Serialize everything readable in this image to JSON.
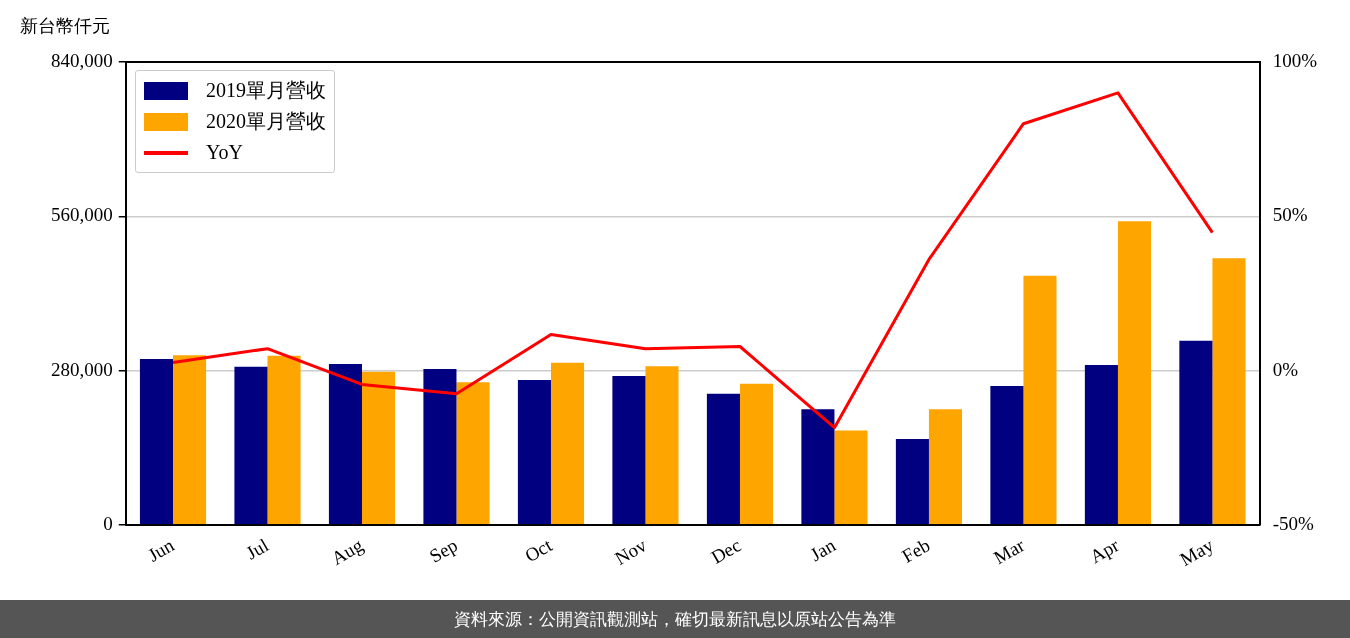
{
  "chart_data": {
    "type": "bar",
    "ylabel": "新台幣仟元",
    "annotations": [
      "資料來源：公開資訊觀測站，確切最新訊息以原站公告為準"
    ],
    "categories": [
      "Jun",
      "Jul",
      "Aug",
      "Sep",
      "Oct",
      "Nov",
      "Dec",
      "Jan",
      "Feb",
      "Mar",
      "Apr",
      "May"
    ],
    "series": [
      {
        "name": "2019單月營收",
        "color": "#000080",
        "values": [
          301000,
          287000,
          292000,
          283000,
          263000,
          270000,
          238000,
          210000,
          156000,
          252000,
          290000,
          334000
        ]
      },
      {
        "name": "2020單月營收",
        "color": "#ffa500",
        "values": [
          308000,
          307000,
          278000,
          259000,
          294000,
          288000,
          256000,
          171000,
          210000,
          452000,
          551000,
          484000
        ]
      },
      {
        "name": "YoY",
        "type": "line",
        "axis": "y2",
        "color": "#ff0000",
        "values": [
          2.6,
          7.1,
          -4.5,
          -7.5,
          11.7,
          7.1,
          7.8,
          -18.5,
          36,
          80,
          90,
          44.7
        ]
      }
    ],
    "ylim": [
      0,
      840000
    ],
    "yticks": [
      {
        "value": 0,
        "label": "0"
      },
      {
        "value": 280000,
        "label": "280,000"
      },
      {
        "value": 560000,
        "label": "560,000"
      },
      {
        "value": 840000,
        "label": "840,000"
      }
    ],
    "y2lim": [
      -50,
      100
    ],
    "y2ticks": [
      {
        "value": -50,
        "label": "-50%"
      },
      {
        "value": 0,
        "label": "0%"
      },
      {
        "value": 50,
        "label": "50%"
      },
      {
        "value": 100,
        "label": "100%"
      }
    ],
    "grid": "y",
    "legend": "top left",
    "marker": "none",
    "line_style": "solid"
  }
}
